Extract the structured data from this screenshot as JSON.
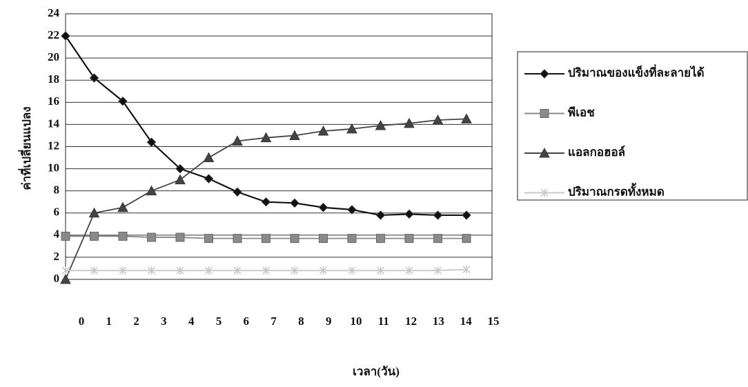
{
  "chart_data": {
    "type": "line",
    "x_label": "เวลา(วัน)",
    "y_label": "ค่าที่เปลี่ยนแปลง",
    "categories": [
      "0",
      "1",
      "2",
      "3",
      "4",
      "5",
      "6",
      "7",
      "8",
      "9",
      "10",
      "11",
      "12",
      "13",
      "14",
      "15"
    ],
    "ylim": [
      0,
      24
    ],
    "yticks": [
      0,
      2,
      4,
      6,
      8,
      10,
      12,
      14,
      16,
      18,
      20,
      22,
      24
    ],
    "grid": true,
    "series": [
      {
        "name": "ปริมาณของแข็งที่ละลายได้",
        "color": "#111111",
        "marker": "diamond",
        "values": [
          22,
          18.2,
          16.1,
          12.4,
          10,
          9.1,
          7.9,
          7,
          6.9,
          6.5,
          6.3,
          5.8,
          5.9,
          5.8,
          5.8,
          null
        ]
      },
      {
        "name": "พีเอช",
        "color": "#8a8a8a",
        "marker": "square",
        "values": [
          3.9,
          3.9,
          3.9,
          3.8,
          3.8,
          3.7,
          3.7,
          3.7,
          3.7,
          3.7,
          3.7,
          3.7,
          3.7,
          3.7,
          3.7,
          null
        ]
      },
      {
        "name": "แอลกอฮอล์",
        "color": "#444444",
        "marker": "triangle",
        "values": [
          0,
          6,
          6.5,
          8,
          9,
          11,
          12.5,
          12.8,
          13,
          13.4,
          13.6,
          13.9,
          14.1,
          14.4,
          14.5,
          null
        ]
      },
      {
        "name": "ปริมาณกรดทั้งหมด",
        "color": "#c8c8c8",
        "marker": "x",
        "values": [
          0.8,
          0.8,
          0.8,
          0.8,
          0.8,
          0.8,
          0.8,
          0.8,
          0.8,
          0.8,
          0.8,
          0.8,
          0.8,
          0.8,
          0.9,
          null
        ]
      }
    ]
  }
}
